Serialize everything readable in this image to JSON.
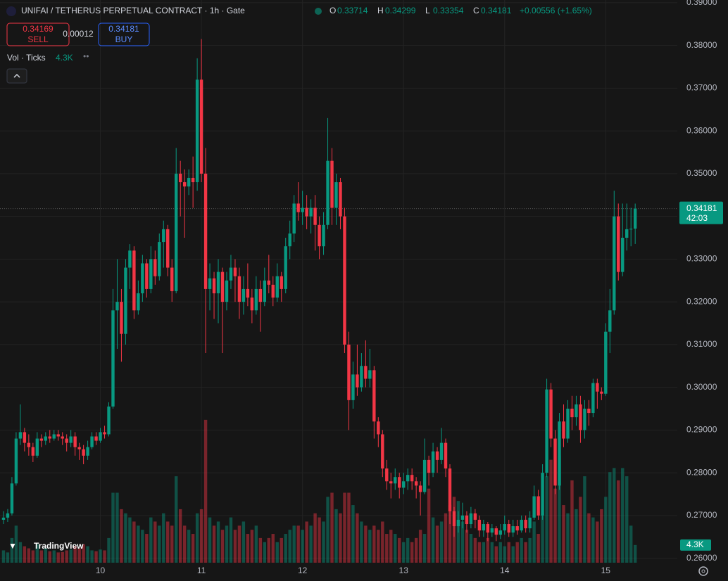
{
  "chart_data": {
    "type": "candlestick",
    "title": "UNIFAI / TETHERUS PERPETUAL CONTRACT · 1h · Gate",
    "ohlc_labels": [
      "O",
      "H",
      "L",
      "C"
    ],
    "change": "+0.00556 (+1.65%)",
    "sell": {
      "price": "0.34169",
      "label": "SELL"
    },
    "spread": "0.00012",
    "buy": {
      "price": "0.34181",
      "label": "BUY"
    },
    "volume_title": "Vol · Ticks",
    "volume_last_label": "4.3K",
    "countdown": "42:03",
    "brand": "TradingView",
    "up_color": "#089981",
    "down_color": "#f23645",
    "grid": true,
    "ylim": [
      0.25895,
      0.39064
    ],
    "yticks": [
      {
        "value": 0.26,
        "label": "0.26000"
      },
      {
        "value": 0.27,
        "label": "0.27000"
      },
      {
        "value": 0.28,
        "label": "0.28000"
      },
      {
        "value": 0.29,
        "label": "0.29000"
      },
      {
        "value": 0.3,
        "label": "0.30000"
      },
      {
        "value": 0.31,
        "label": "0.31000"
      },
      {
        "value": 0.32,
        "label": "0.32000"
      },
      {
        "value": 0.33,
        "label": "0.33000"
      },
      {
        "value": 0.34,
        "label": "0.34000"
      },
      {
        "value": 0.35,
        "label": "0.35000"
      },
      {
        "value": 0.36,
        "label": "0.36000"
      },
      {
        "value": 0.37,
        "label": "0.37000"
      },
      {
        "value": 0.38,
        "label": "0.38000"
      },
      {
        "value": 0.39,
        "label": "0.39000"
      }
    ],
    "xlim": [
      -0.83,
      160
    ],
    "xticks": [
      {
        "value": 23,
        "label": "10"
      },
      {
        "value": 47,
        "label": "11"
      },
      {
        "value": 71,
        "label": "12"
      },
      {
        "value": 95,
        "label": "13"
      },
      {
        "value": 119,
        "label": "14"
      },
      {
        "value": 143,
        "label": "15"
      }
    ],
    "vlim": [
      0,
      41000
    ],
    "candles": [
      [
        0.269,
        0.271,
        0.268,
        0.2695
      ],
      [
        0.2695,
        0.2715,
        0.2685,
        0.2705
      ],
      [
        0.2705,
        0.279,
        0.27,
        0.2775
      ],
      [
        0.2775,
        0.2895,
        0.277,
        0.288
      ],
      [
        0.288,
        0.296,
        0.2865,
        0.2895
      ],
      [
        0.2895,
        0.2905,
        0.285,
        0.287
      ],
      [
        0.287,
        0.289,
        0.284,
        0.286
      ],
      [
        0.286,
        0.287,
        0.2825,
        0.284
      ],
      [
        0.284,
        0.2895,
        0.2835,
        0.288
      ],
      [
        0.288,
        0.289,
        0.286,
        0.2875
      ],
      [
        0.2875,
        0.2895,
        0.2865,
        0.2885
      ],
      [
        0.2885,
        0.29,
        0.287,
        0.288
      ],
      [
        0.288,
        0.29,
        0.2875,
        0.289
      ],
      [
        0.289,
        0.29,
        0.2875,
        0.2885
      ],
      [
        0.2885,
        0.2895,
        0.2865,
        0.288
      ],
      [
        0.288,
        0.289,
        0.285,
        0.287
      ],
      [
        0.287,
        0.29,
        0.286,
        0.2885
      ],
      [
        0.2885,
        0.2895,
        0.284,
        0.286
      ],
      [
        0.286,
        0.287,
        0.283,
        0.2855
      ],
      [
        0.2855,
        0.2865,
        0.282,
        0.284
      ],
      [
        0.284,
        0.2875,
        0.283,
        0.286
      ],
      [
        0.286,
        0.2895,
        0.2855,
        0.2885
      ],
      [
        0.2885,
        0.2895,
        0.2865,
        0.2875
      ],
      [
        0.2875,
        0.2905,
        0.287,
        0.2895
      ],
      [
        0.2895,
        0.291,
        0.288,
        0.289
      ],
      [
        0.289,
        0.2965,
        0.2885,
        0.2955
      ],
      [
        0.2955,
        0.323,
        0.295,
        0.318
      ],
      [
        0.318,
        0.33,
        0.309,
        0.32
      ],
      [
        0.32,
        0.323,
        0.306,
        0.3125
      ],
      [
        0.3125,
        0.33,
        0.31,
        0.328
      ],
      [
        0.328,
        0.3335,
        0.323,
        0.332
      ],
      [
        0.332,
        0.333,
        0.316,
        0.318
      ],
      [
        0.318,
        0.325,
        0.317,
        0.322
      ],
      [
        0.322,
        0.331,
        0.32,
        0.329
      ],
      [
        0.329,
        0.33,
        0.321,
        0.323
      ],
      [
        0.323,
        0.333,
        0.322,
        0.33
      ],
      [
        0.33,
        0.332,
        0.324,
        0.326
      ],
      [
        0.326,
        0.336,
        0.325,
        0.334
      ],
      [
        0.334,
        0.339,
        0.328,
        0.337
      ],
      [
        0.337,
        0.338,
        0.326,
        0.328
      ],
      [
        0.328,
        0.33,
        0.32,
        0.3225
      ],
      [
        0.3225,
        0.356,
        0.322,
        0.35
      ],
      [
        0.35,
        0.353,
        0.34,
        0.348
      ],
      [
        0.348,
        0.351,
        0.335,
        0.347
      ],
      [
        0.347,
        0.351,
        0.345,
        0.349
      ],
      [
        0.349,
        0.354,
        0.342,
        0.348
      ],
      [
        0.348,
        0.377,
        0.346,
        0.372
      ],
      [
        0.372,
        0.3815,
        0.348,
        0.35
      ],
      [
        0.35,
        0.356,
        0.308,
        0.323
      ],
      [
        0.323,
        0.329,
        0.318,
        0.3255
      ],
      [
        0.3255,
        0.327,
        0.316,
        0.322
      ],
      [
        0.322,
        0.33,
        0.315,
        0.327
      ],
      [
        0.327,
        0.328,
        0.308,
        0.32
      ],
      [
        0.32,
        0.327,
        0.318,
        0.325
      ],
      [
        0.325,
        0.331,
        0.323,
        0.328
      ],
      [
        0.328,
        0.33,
        0.32,
        0.326
      ],
      [
        0.326,
        0.328,
        0.316,
        0.32
      ],
      [
        0.32,
        0.326,
        0.317,
        0.323
      ],
      [
        0.323,
        0.329,
        0.319,
        0.321
      ],
      [
        0.321,
        0.323,
        0.315,
        0.318
      ],
      [
        0.318,
        0.326,
        0.317,
        0.323
      ],
      [
        0.323,
        0.325,
        0.313,
        0.32
      ],
      [
        0.32,
        0.328,
        0.319,
        0.325
      ],
      [
        0.325,
        0.331,
        0.322,
        0.324
      ],
      [
        0.324,
        0.326,
        0.319,
        0.321
      ],
      [
        0.321,
        0.329,
        0.32,
        0.326
      ],
      [
        0.326,
        0.327,
        0.32,
        0.323
      ],
      [
        0.323,
        0.335,
        0.322,
        0.333
      ],
      [
        0.333,
        0.339,
        0.33,
        0.336
      ],
      [
        0.336,
        0.345,
        0.334,
        0.343
      ],
      [
        0.343,
        0.348,
        0.339,
        0.341
      ],
      [
        0.341,
        0.346,
        0.338,
        0.342
      ],
      [
        0.342,
        0.345,
        0.337,
        0.34
      ],
      [
        0.34,
        0.344,
        0.336,
        0.342
      ],
      [
        0.342,
        0.345,
        0.332,
        0.338
      ],
      [
        0.338,
        0.34,
        0.33,
        0.333
      ],
      [
        0.333,
        0.341,
        0.331,
        0.338
      ],
      [
        0.338,
        0.363,
        0.337,
        0.353
      ],
      [
        0.353,
        0.356,
        0.338,
        0.342
      ],
      [
        0.342,
        0.35,
        0.338,
        0.348
      ],
      [
        0.348,
        0.349,
        0.337,
        0.34
      ],
      [
        0.34,
        0.342,
        0.308,
        0.31
      ],
      [
        0.31,
        0.313,
        0.29,
        0.297
      ],
      [
        0.297,
        0.306,
        0.295,
        0.303
      ],
      [
        0.303,
        0.31,
        0.298,
        0.3
      ],
      [
        0.3,
        0.308,
        0.299,
        0.305
      ],
      [
        0.305,
        0.311,
        0.3,
        0.302
      ],
      [
        0.302,
        0.309,
        0.3,
        0.304
      ],
      [
        0.304,
        0.305,
        0.288,
        0.292
      ],
      [
        0.292,
        0.293,
        0.286,
        0.289
      ],
      [
        0.289,
        0.29,
        0.279,
        0.281
      ],
      [
        0.281,
        0.283,
        0.276,
        0.278
      ],
      [
        0.278,
        0.28,
        0.274,
        0.2775
      ],
      [
        0.2775,
        0.281,
        0.276,
        0.279
      ],
      [
        0.279,
        0.28,
        0.274,
        0.2765
      ],
      [
        0.2765,
        0.28,
        0.275,
        0.278
      ],
      [
        0.278,
        0.281,
        0.276,
        0.2795
      ],
      [
        0.2795,
        0.281,
        0.276,
        0.278
      ],
      [
        0.278,
        0.279,
        0.274,
        0.277
      ],
      [
        0.277,
        0.278,
        0.27,
        0.2755
      ],
      [
        0.2755,
        0.288,
        0.275,
        0.283
      ],
      [
        0.283,
        0.284,
        0.277,
        0.28
      ],
      [
        0.28,
        0.287,
        0.279,
        0.285
      ],
      [
        0.285,
        0.286,
        0.28,
        0.283
      ],
      [
        0.283,
        0.2905,
        0.282,
        0.287
      ],
      [
        0.287,
        0.288,
        0.279,
        0.281
      ],
      [
        0.281,
        0.282,
        0.268,
        0.271
      ],
      [
        0.271,
        0.272,
        0.265,
        0.2675
      ],
      [
        0.2675,
        0.271,
        0.266,
        0.269
      ],
      [
        0.269,
        0.273,
        0.267,
        0.27
      ],
      [
        0.27,
        0.271,
        0.266,
        0.268
      ],
      [
        0.268,
        0.272,
        0.267,
        0.2705
      ],
      [
        0.2705,
        0.2715,
        0.267,
        0.269
      ],
      [
        0.269,
        0.27,
        0.265,
        0.2665
      ],
      [
        0.2665,
        0.269,
        0.265,
        0.268
      ],
      [
        0.268,
        0.2685,
        0.264,
        0.266
      ],
      [
        0.266,
        0.268,
        0.265,
        0.267
      ],
      [
        0.267,
        0.2675,
        0.264,
        0.2655
      ],
      [
        0.2655,
        0.268,
        0.2645,
        0.2665
      ],
      [
        0.2665,
        0.27,
        0.2655,
        0.268
      ],
      [
        0.268,
        0.269,
        0.265,
        0.266
      ],
      [
        0.266,
        0.269,
        0.265,
        0.2675
      ],
      [
        0.2675,
        0.269,
        0.2655,
        0.2665
      ],
      [
        0.2665,
        0.27,
        0.266,
        0.269
      ],
      [
        0.269,
        0.27,
        0.266,
        0.267
      ],
      [
        0.267,
        0.271,
        0.266,
        0.2695
      ],
      [
        0.2695,
        0.277,
        0.269,
        0.2745
      ],
      [
        0.2745,
        0.276,
        0.269,
        0.27
      ],
      [
        0.27,
        0.282,
        0.269,
        0.28
      ],
      [
        0.28,
        0.302,
        0.279,
        0.2995
      ],
      [
        0.2995,
        0.301,
        0.286,
        0.288
      ],
      [
        0.288,
        0.29,
        0.275,
        0.277
      ],
      [
        0.277,
        0.294,
        0.276,
        0.292
      ],
      [
        0.292,
        0.296,
        0.286,
        0.288
      ],
      [
        0.288,
        0.297,
        0.287,
        0.295
      ],
      [
        0.295,
        0.298,
        0.29,
        0.293
      ],
      [
        0.293,
        0.298,
        0.291,
        0.296
      ],
      [
        0.296,
        0.298,
        0.287,
        0.29
      ],
      [
        0.29,
        0.297,
        0.288,
        0.295
      ],
      [
        0.295,
        0.297,
        0.291,
        0.294
      ],
      [
        0.294,
        0.302,
        0.293,
        0.301
      ],
      [
        0.301,
        0.302,
        0.295,
        0.299
      ],
      [
        0.299,
        0.3,
        0.297,
        0.2985
      ],
      [
        0.2985,
        0.315,
        0.298,
        0.313
      ],
      [
        0.313,
        0.323,
        0.308,
        0.318
      ],
      [
        0.318,
        0.346,
        0.317,
        0.34
      ],
      [
        0.34,
        0.343,
        0.325,
        0.327
      ],
      [
        0.327,
        0.343,
        0.326,
        0.335
      ],
      [
        0.335,
        0.343,
        0.332,
        0.337
      ],
      [
        0.337,
        0.342,
        0.333,
        0.3371
      ],
      [
        0.33714,
        0.34299,
        0.33354,
        0.34181
      ]
    ],
    "volume": [
      3000,
      2500,
      6000,
      9000,
      5000,
      4000,
      3500,
      3000,
      4500,
      3000,
      3500,
      2800,
      3000,
      2500,
      2600,
      3000,
      3200,
      4000,
      3500,
      4500,
      4000,
      3000,
      2800,
      3200,
      3000,
      6000,
      17000,
      17000,
      13000,
      12000,
      11000,
      10000,
      9000,
      8000,
      7000,
      11000,
      10000,
      9000,
      12000,
      10000,
      9000,
      21000,
      13000,
      9000,
      8000,
      7000,
      12000,
      13000,
      34700,
      11000,
      9000,
      10000,
      8000,
      9000,
      11000,
      8000,
      9000,
      10000,
      7000,
      8000,
      9000,
      6000,
      5000,
      6000,
      7000,
      5000,
      6000,
      7000,
      8000,
      9000,
      9000,
      8000,
      10000,
      9000,
      12000,
      11000,
      10000,
      16000,
      17000,
      13000,
      12000,
      17000,
      17000,
      14000,
      12000,
      10000,
      9000,
      8000,
      9000,
      8000,
      10000,
      7000,
      8000,
      7000,
      6000,
      5000,
      6000,
      5000,
      6000,
      8000,
      7000,
      18000,
      11000,
      9000,
      10000,
      12000,
      14000,
      16000,
      15000,
      10000,
      8000,
      7000,
      6000,
      5000,
      5000,
      6000,
      5000,
      4000,
      5000,
      4000,
      5000,
      4000,
      5000,
      6000,
      5000,
      6000,
      10000,
      7000,
      12000,
      21000,
      25000,
      18000,
      26000,
      14000,
      12000,
      20000,
      13000,
      16000,
      21000,
      12000,
      11000,
      10000,
      13000,
      16000,
      22000,
      23000,
      20000,
      23000,
      21000,
      9000,
      4300
    ]
  }
}
